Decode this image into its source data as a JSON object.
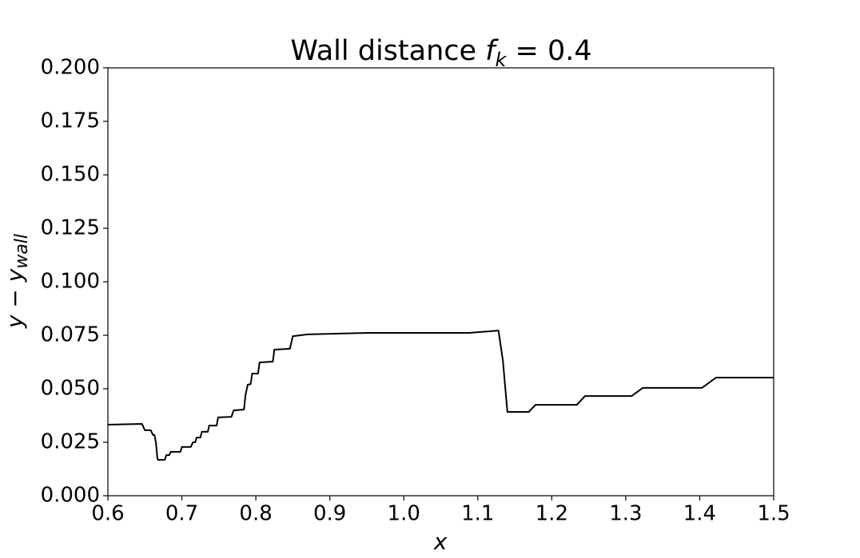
{
  "chart_data": {
    "type": "line",
    "title": [
      "Wall distance ",
      "f",
      "k",
      " = 0.4"
    ],
    "xlabel": "x",
    "ylabel": [
      "y − y",
      "wall"
    ],
    "xlim": [
      0.6,
      1.5
    ],
    "ylim": [
      0,
      0.2
    ],
    "xticks": [
      0.6,
      0.7,
      0.8,
      0.9,
      {
        "value": 1,
        "label": "1.0"
      },
      1.1,
      1.2,
      1.3,
      1.4,
      1.5
    ],
    "yticks": [
      {
        "value": 0,
        "label": "0.000"
      },
      0.025,
      {
        "value": 0.05,
        "label": "0.050"
      },
      0.075,
      {
        "value": 0.1,
        "label": "0.100"
      },
      0.125,
      {
        "value": 0.15,
        "label": "0.150"
      },
      0.175,
      {
        "value": 0.2,
        "label": "0.200"
      }
    ],
    "grid": false,
    "series": [
      {
        "color": "#000000",
        "x": [
          0.6,
          0.646,
          0.65,
          0.658,
          0.661,
          0.663,
          0.665,
          0.667,
          0.668,
          0.677,
          0.679,
          0.683,
          0.685,
          0.698,
          0.7,
          0.712,
          0.715,
          0.718,
          0.72,
          0.725,
          0.727,
          0.735,
          0.737,
          0.747,
          0.749,
          0.767,
          0.77,
          0.784,
          0.786,
          0.789,
          0.793,
          0.795,
          0.803,
          0.805,
          0.823,
          0.825,
          0.846,
          0.85,
          0.87,
          0.951,
          1.088,
          1.128,
          1.134,
          1.14,
          1.169,
          1.178,
          1.234,
          1.245,
          1.308,
          1.323,
          1.403,
          1.422,
          1.5
        ],
        "values": [
          0.0332,
          0.0336,
          0.0306,
          0.0306,
          0.0284,
          0.0284,
          0.0246,
          0.0172,
          0.0168,
          0.0168,
          0.019,
          0.019,
          0.0205,
          0.0205,
          0.0228,
          0.0228,
          0.025,
          0.025,
          0.0272,
          0.0272,
          0.0299,
          0.0299,
          0.0328,
          0.0328,
          0.0366,
          0.0369,
          0.0399,
          0.0403,
          0.047,
          0.0519,
          0.0522,
          0.0571,
          0.0571,
          0.0623,
          0.0627,
          0.0683,
          0.0687,
          0.0746,
          0.0754,
          0.0761,
          0.0761,
          0.0772,
          0.063,
          0.0392,
          0.0392,
          0.0425,
          0.0425,
          0.0466,
          0.0466,
          0.0504,
          0.0504,
          0.0552,
          0.0552
        ]
      }
    ]
  }
}
